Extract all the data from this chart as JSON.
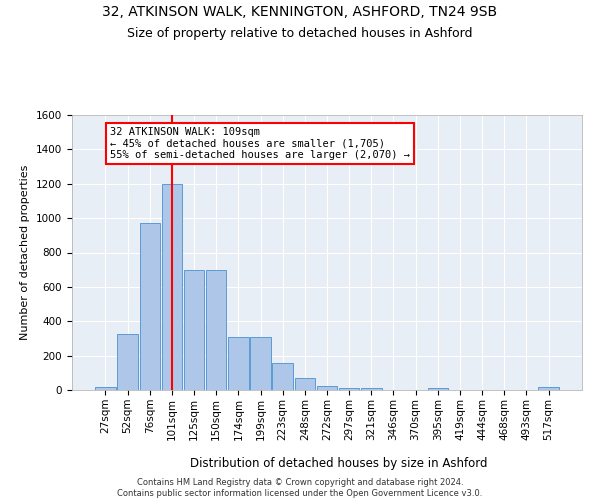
{
  "title1": "32, ATKINSON WALK, KENNINGTON, ASHFORD, TN24 9SB",
  "title2": "Size of property relative to detached houses in Ashford",
  "xlabel": "Distribution of detached houses by size in Ashford",
  "ylabel": "Number of detached properties",
  "footnote": "Contains HM Land Registry data © Crown copyright and database right 2024.\nContains public sector information licensed under the Open Government Licence v3.0.",
  "bin_labels": [
    "27sqm",
    "52sqm",
    "76sqm",
    "101sqm",
    "125sqm",
    "150sqm",
    "174sqm",
    "199sqm",
    "223sqm",
    "248sqm",
    "272sqm",
    "297sqm",
    "321sqm",
    "346sqm",
    "370sqm",
    "395sqm",
    "419sqm",
    "444sqm",
    "468sqm",
    "493sqm",
    "517sqm"
  ],
  "bar_values": [
    20,
    325,
    970,
    1200,
    700,
    700,
    310,
    310,
    155,
    70,
    25,
    10,
    10,
    0,
    0,
    10,
    0,
    0,
    0,
    0,
    15
  ],
  "bar_color": "#aec6e8",
  "bar_edge_color": "#5b9bd5",
  "vline_x": 3,
  "annotation_text": "32 ATKINSON WALK: 109sqm\n← 45% of detached houses are smaller (1,705)\n55% of semi-detached houses are larger (2,070) →",
  "annotation_box_color": "white",
  "annotation_box_edge": "red",
  "vline_color": "red",
  "ylim": [
    0,
    1600
  ],
  "yticks": [
    0,
    200,
    400,
    600,
    800,
    1000,
    1200,
    1400,
    1600
  ],
  "background_color": "#e8eef5",
  "grid_color": "white",
  "title1_fontsize": 10,
  "title2_fontsize": 9,
  "xlabel_fontsize": 8.5,
  "ylabel_fontsize": 8,
  "tick_fontsize": 7.5,
  "annotation_fontsize": 7.5
}
